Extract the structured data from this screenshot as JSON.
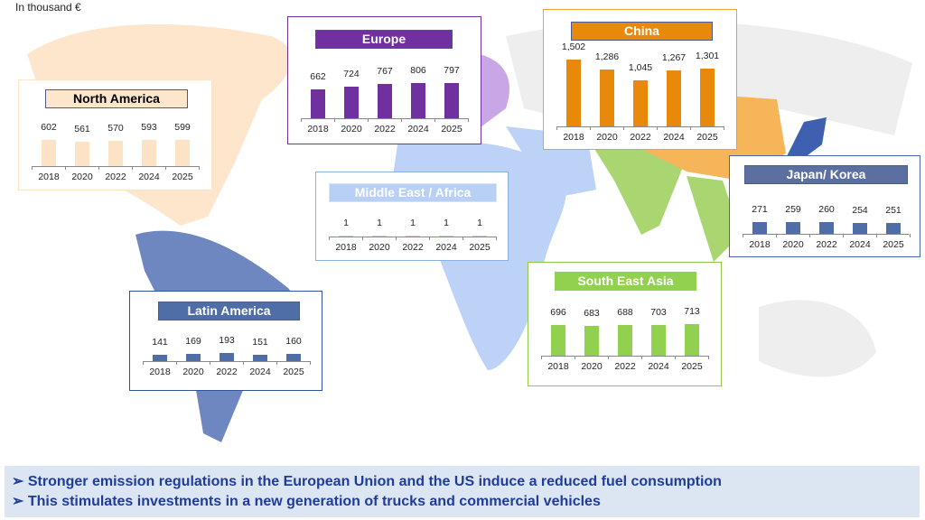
{
  "unit_label": "In thousand €",
  "chart_data": [
    {
      "type": "bar",
      "title": "North America",
      "categories": [
        "2018",
        "2020",
        "2022",
        "2024",
        "2025"
      ],
      "values": [
        602,
        561,
        570,
        593,
        599
      ],
      "labels": [
        "602",
        "561",
        "570",
        "593",
        "599"
      ],
      "color": "#fde3c6",
      "title_bg": "#fde6cc",
      "title_color": "#000000"
    },
    {
      "type": "bar",
      "title": "Europe",
      "categories": [
        "2018",
        "2020",
        "2022",
        "2024",
        "2025"
      ],
      "values": [
        662,
        724,
        767,
        806,
        797
      ],
      "labels": [
        "662",
        "724",
        "767",
        "806",
        "797"
      ],
      "color": "#7030a0",
      "title_bg": "#7030a0",
      "title_color": "#ffffff"
    },
    {
      "type": "bar",
      "title": "China",
      "categories": [
        "2018",
        "2020",
        "2022",
        "2024",
        "2025"
      ],
      "values": [
        1502,
        1286,
        1045,
        1267,
        1301
      ],
      "labels": [
        "1,502",
        "1,286",
        "1,045",
        "1,267",
        "1,301"
      ],
      "color": "#e8890c",
      "title_bg": "#e8890c",
      "title_color": "#ffffff"
    },
    {
      "type": "bar",
      "title": "Japan/ Korea",
      "categories": [
        "2018",
        "2020",
        "2022",
        "2024",
        "2025"
      ],
      "values": [
        271,
        259,
        260,
        254,
        251
      ],
      "labels": [
        "271",
        "259",
        "260",
        "254",
        "251"
      ],
      "color": "#4f6ea8",
      "title_bg": "#5b6fa0",
      "title_color": "#ffffff"
    },
    {
      "type": "bar",
      "title": "Middle East / Africa",
      "categories": [
        "2018",
        "2020",
        "2022",
        "2024",
        "2025"
      ],
      "values": [
        1,
        1,
        1,
        1,
        1
      ],
      "labels": [
        "1",
        "1",
        "1",
        "1",
        "1"
      ],
      "color": "#b8d0f5",
      "title_bg": "#b8d0f5",
      "title_color": "#ffffff"
    },
    {
      "type": "bar",
      "title": "South East Asia",
      "categories": [
        "2018",
        "2020",
        "2022",
        "2024",
        "2025"
      ],
      "values": [
        696,
        683,
        688,
        703,
        713
      ],
      "labels": [
        "696",
        "683",
        "688",
        "703",
        "713"
      ],
      "color": "#92d050",
      "title_bg": "#92d050",
      "title_color": "#ffffff"
    },
    {
      "type": "bar",
      "title": "Latin America",
      "categories": [
        "2018",
        "2020",
        "2022",
        "2024",
        "2025"
      ],
      "values": [
        141,
        169,
        193,
        151,
        160
      ],
      "labels": [
        "141",
        "169",
        "193",
        "151",
        "160"
      ],
      "color": "#4f6ea8",
      "title_bg": "#4f6ea8",
      "title_color": "#ffffff"
    }
  ],
  "bullets": [
    "➢ Stronger emission regulations in the European Union and the US induce a reduced fuel consumption",
    "➢ This stimulates investments in a new generation of trucks and commercial vehicles"
  ]
}
